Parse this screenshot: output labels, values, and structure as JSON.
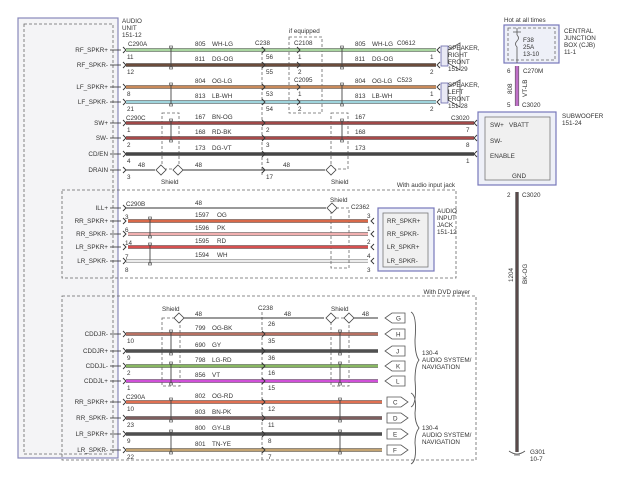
{
  "audio_unit": {
    "title": [
      "AUDIO",
      "UNIT",
      "151-12"
    ]
  },
  "section1": {
    "connector_left": "C290A",
    "connector_left_sw": "C290C",
    "connector_mid": "C238",
    "if_equipped": "if equipped",
    "c2108": "C2108",
    "c2095": "C2095",
    "c0612": "C0612",
    "c523": "C523",
    "c3020": "C3020",
    "shield": "Shield",
    "speaker_right": [
      "SPEAKER,",
      "RIGHT",
      "FRONT",
      "151-29"
    ],
    "speaker_left": [
      "SPEAKER,",
      "LEFT",
      "FRONT",
      "151-28"
    ],
    "wires": [
      {
        "label": "RF_SPKR+",
        "circuit": "805",
        "color_code": "WH-LG",
        "pin_left": "11",
        "pin_mid": "56",
        "pin_opt": "1",
        "pin_right": "1",
        "color": "#a9d6a0"
      },
      {
        "label": "RF_SPKR-",
        "circuit": "811",
        "color_code": "DG-OG",
        "pin_left": "12",
        "pin_mid": "55",
        "pin_opt": "2",
        "pin_right": "2",
        "color": "#6b4c3b"
      },
      {
        "label": "LF_SPKR+",
        "circuit": "804",
        "color_code": "OG-LG",
        "pin_left": "8",
        "pin_mid": "53",
        "pin_opt": "1",
        "pin_right": "1",
        "color": "#c98a5a"
      },
      {
        "label": "LF_SPKR-",
        "circuit": "813",
        "color_code": "LB-WH",
        "pin_left": "21",
        "pin_mid": "54",
        "pin_opt": "2",
        "pin_right": "2",
        "color": "#9fd4dc"
      },
      {
        "label": "SW+",
        "circuit": "167",
        "color_code": "BN-OG",
        "pin_left": "1",
        "pin_mid": "2",
        "pin_right": "7",
        "color": "#a04848"
      },
      {
        "label": "SW-",
        "circuit": "168",
        "color_code": "RD-BK",
        "pin_left": "2",
        "pin_mid": "3",
        "pin_right": "8",
        "color": "#a84a4a"
      },
      {
        "label": "CD/EN",
        "circuit": "173",
        "color_code": "DG-VT",
        "pin_left": "4",
        "pin_mid": "1",
        "pin_right": "1",
        "color": "#454545"
      },
      {
        "label": "DRAIN",
        "circuit": "48",
        "pin_left": "3",
        "pin_mid": "17",
        "color": "#333333"
      }
    ]
  },
  "subwoofer": {
    "title": [
      "SUBWOOFER",
      "151-24"
    ],
    "pins": [
      "SW+",
      "VBATT",
      "SW-",
      "ENABLE",
      "GND"
    ]
  },
  "cjb": {
    "hot": "Hot at all times",
    "fuse": [
      "F38",
      "25A",
      "13-10"
    ],
    "title": [
      "CENTRAL",
      "JUNCTION",
      "BOX (CJB)",
      "11-1"
    ],
    "feed": {
      "circuit": "808",
      "color_code": "VT-LB",
      "c_top": "C270M",
      "pin_top": "6",
      "c_bot": "C3020",
      "pin_bot": "5",
      "color": "#c070c8"
    },
    "ground": {
      "circuit": "1204",
      "color_code": "BK-OG",
      "connector": "C3020",
      "pin": "2",
      "ground_label": [
        "G301",
        "10-7"
      ],
      "color": "#5a4a4a"
    }
  },
  "section2": {
    "caption": "With audio input jack",
    "connector_left": "C290B",
    "connector_right": "C2362",
    "shield": "Shield",
    "jack_title": [
      "AUDIO",
      "INPUT",
      "JACK",
      "151-12"
    ],
    "ill": {
      "label": "ILL+",
      "circuit": "48"
    },
    "wires": [
      {
        "label": "RR_SPKR+",
        "circuit": "1597",
        "color_code": "OG",
        "pin_left": "3",
        "pin_right": "3",
        "jack_pin": "RR_SPKR+",
        "color": "#d8694a"
      },
      {
        "label": "RR_SPKR-",
        "circuit": "1596",
        "color_code": "PK",
        "pin_left": "6",
        "pin_right": "1",
        "jack_pin": "RR_SPKR-",
        "color": "#f2b0b0"
      },
      {
        "label": "LR_SPKR+",
        "circuit": "1595",
        "color_code": "RD",
        "pin_left": "14",
        "pin_right": "2",
        "jack_pin": "LR_SPKR+",
        "color": "#d85050"
      },
      {
        "label": "LR_SPKR-",
        "circuit": "1594",
        "color_code": "WH",
        "pin_left": "7",
        "pin_right": "4",
        "jack_pin": "LR_SPKR-",
        "color": "#ffffff"
      }
    ],
    "extra_pins": {
      "left": "8",
      "right": "3"
    }
  },
  "section3": {
    "caption": "With DVD player",
    "connector_mid": "C238",
    "connector_left": "C290A",
    "shield": "Shield",
    "shield_circuit": "48",
    "shield_pin": "26",
    "shield_tab": "G",
    "dest1": [
      "130-4",
      "AUDIO SYSTEM/",
      "NAVIGATION"
    ],
    "dest2": [
      "130-4",
      "AUDIO SYSTEM/",
      "NAVIGATION"
    ],
    "wires": [
      {
        "label": "CDDJR-",
        "circuit": "799",
        "color_code": "OG-BK",
        "pin_left": "10",
        "pin_mid": "35",
        "tab": "H",
        "color": "#b87062"
      },
      {
        "label": "CDDJR+",
        "circuit": "690",
        "color_code": "GY",
        "pin_left": "9",
        "pin_mid": "36",
        "tab": "J",
        "color": "#505050"
      },
      {
        "label": "CDDJL-",
        "circuit": "798",
        "color_code": "LG-RD",
        "pin_left": "2",
        "pin_mid": "16",
        "tab": "K",
        "color": "#88b862"
      },
      {
        "label": "CDDJL+",
        "circuit": "856",
        "color_code": "VT",
        "pin_left": "1",
        "pin_mid": "15",
        "tab": "L",
        "color": "#d050d8"
      },
      {
        "label": "RR_SPKR+",
        "circuit": "802",
        "color_code": "OG-RD",
        "pin_left": "10",
        "pin_mid": "12",
        "tab": "C",
        "color": "#e07052"
      },
      {
        "label": "RR_SPKR-",
        "circuit": "803",
        "color_code": "BN-PK",
        "pin_left": "23",
        "pin_mid": "11",
        "tab": "D",
        "color": "#7e5e5e"
      },
      {
        "label": "LR_SPKR+",
        "circuit": "800",
        "color_code": "GY-LB",
        "pin_left": "9",
        "pin_mid": "8",
        "tab": "E",
        "color": "#4e4e4e"
      },
      {
        "label": "LR_SPKR-",
        "circuit": "801",
        "color_code": "TN-YE",
        "pin_left": "22",
        "pin_mid": "7",
        "tab": "F",
        "color": "#c4a472"
      }
    ]
  }
}
